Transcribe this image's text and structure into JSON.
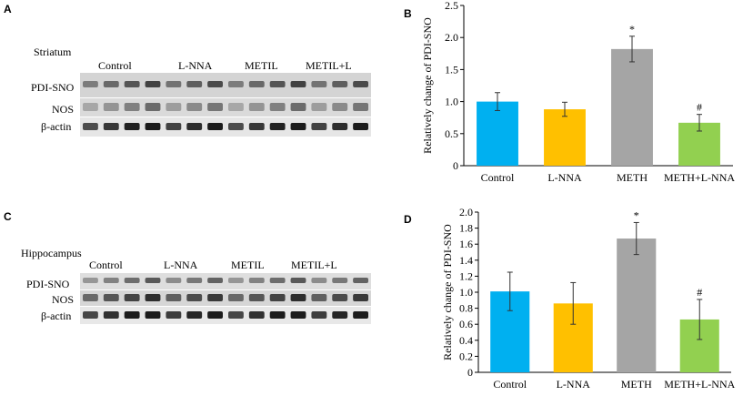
{
  "panels": {
    "a": {
      "letter": "A",
      "region": "Striatum",
      "lanes": [
        "Control",
        "L-NNA",
        "METIL",
        "METIL+L"
      ],
      "rows": [
        "PDI-SNO",
        "NOS",
        "β-actin"
      ]
    },
    "c": {
      "letter": "C",
      "region": "Hippocampus",
      "lanes": [
        "Control",
        "L-NNA",
        "METIL",
        "METIL+L"
      ],
      "rows": [
        "PDI-SNO",
        "NOS",
        "β-actin"
      ]
    }
  },
  "chart_data": [
    {
      "letter": "B",
      "type": "bar",
      "categories": [
        "Control",
        "L-NNA",
        "METH",
        "METH+L-NNA"
      ],
      "values": [
        1.0,
        0.88,
        1.82,
        0.67
      ],
      "errors": [
        0.14,
        0.11,
        0.2,
        0.13
      ],
      "annotations": [
        "",
        "",
        "*",
        "#"
      ],
      "colors": [
        "#00b0f0",
        "#ffc000",
        "#a5a5a5",
        "#92d050"
      ],
      "ylabel": "Relatively change of PDI-SNO",
      "ylim": [
        0,
        2.5
      ],
      "yticks": [
        "0",
        "0.5",
        "1.0",
        "1.5",
        "2.0",
        "2.5"
      ],
      "grid": false
    },
    {
      "letter": "D",
      "type": "bar",
      "categories": [
        "Control",
        "L-NNA",
        "METH",
        "METH+L-NNA"
      ],
      "values": [
        1.01,
        0.86,
        1.67,
        0.66
      ],
      "errors": [
        0.24,
        0.26,
        0.2,
        0.25
      ],
      "annotations": [
        "",
        "",
        "*",
        "#"
      ],
      "colors": [
        "#00b0f0",
        "#ffc000",
        "#a5a5a5",
        "#92d050"
      ],
      "ylabel": "Relatively change of PDI-SNO",
      "ylim": [
        0,
        2.0
      ],
      "yticks": [
        "0",
        "0.2",
        "0.4",
        "0.6",
        "0.8",
        "1.0",
        "1.2",
        "1.4",
        "1.6",
        "1.8",
        "2.0"
      ],
      "grid": false
    }
  ]
}
